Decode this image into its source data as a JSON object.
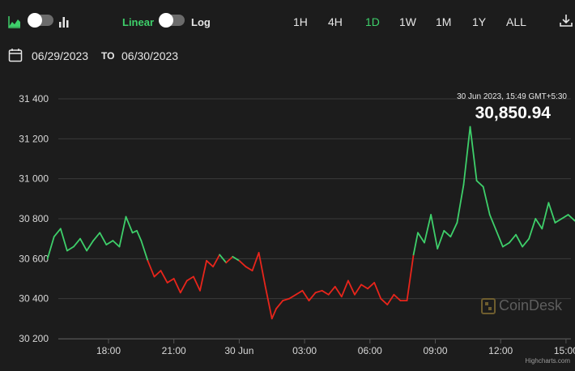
{
  "toolbar": {
    "scale_linear_label": "Linear",
    "scale_log_label": "Log",
    "ranges": [
      "1H",
      "4H",
      "1D",
      "1W",
      "1M",
      "1Y",
      "ALL"
    ],
    "active_range": "1D",
    "accent": "#3ecf6a"
  },
  "date_range": {
    "from": "06/29/2023",
    "to_label": "TO",
    "to": "06/30/2023"
  },
  "tooltip": {
    "date": "30 Jun 2023, 15:49 GMT+5:30",
    "price": "30,850.94"
  },
  "watermark": "CoinDesk",
  "credits": "Highcharts.com",
  "colors": {
    "up": "#3ecf6a",
    "down": "#e8251b",
    "background": "#1c1c1c"
  },
  "chart_data": {
    "type": "line",
    "yticks": [
      "31 400",
      "31 200",
      "31 000",
      "30 800",
      "30 600",
      "30 400",
      "30 200"
    ],
    "ytick_values": [
      31400,
      31200,
      31000,
      30800,
      30600,
      30400,
      30200
    ],
    "xticks": [
      "18:00",
      "21:00",
      "30 Jun",
      "03:00",
      "06:00",
      "09:00",
      "12:00",
      "15:00"
    ],
    "xtick_hours": [
      18,
      21,
      24,
      27,
      30,
      33,
      36,
      39
    ],
    "ylim": [
      30200,
      31400
    ],
    "series": [
      {
        "hours": [
          15.2,
          15.5,
          15.8,
          16.1,
          16.4,
          16.7,
          17.0,
          17.3,
          17.6,
          17.9,
          18.2,
          18.5,
          18.8,
          19.1,
          19.3,
          19.5,
          19.8,
          20.1,
          20.4,
          20.7,
          21.0,
          21.3,
          21.6,
          21.9,
          22.2,
          22.5,
          22.8,
          23.1,
          23.4,
          23.7,
          24.0,
          24.3,
          24.6,
          24.9,
          25.2,
          25.5,
          25.7,
          26.0,
          26.3,
          26.6,
          26.9,
          27.2,
          27.5,
          27.8,
          28.1,
          28.4,
          28.7,
          29.0,
          29.3,
          29.6,
          29.9,
          30.2,
          30.5,
          30.8,
          31.1,
          31.4,
          31.7,
          32.0,
          32.2,
          32.5,
          32.8,
          33.1,
          33.4,
          33.7,
          34.0,
          34.3,
          34.6,
          34.9,
          35.2,
          35.5,
          35.8,
          36.1,
          36.4,
          36.7,
          37.0,
          37.3,
          37.6,
          37.9,
          38.2,
          38.5,
          38.8,
          39.1,
          39.4,
          39.8
        ],
        "values": [
          30600,
          30710,
          30750,
          30640,
          30660,
          30700,
          30640,
          30690,
          30730,
          30670,
          30690,
          30660,
          30810,
          30730,
          30740,
          30690,
          30590,
          30510,
          30540,
          30480,
          30500,
          30430,
          30490,
          30510,
          30440,
          30590,
          30560,
          30620,
          30580,
          30610,
          30590,
          30560,
          30540,
          30630,
          30460,
          30300,
          30350,
          30390,
          30400,
          30420,
          30440,
          30390,
          30430,
          30440,
          30420,
          30460,
          30410,
          30490,
          30420,
          30470,
          30450,
          30480,
          30400,
          30370,
          30420,
          30390,
          30390,
          30620,
          30730,
          30680,
          30820,
          30650,
          30740,
          30710,
          30780,
          30970,
          31260,
          30990,
          30960,
          30820,
          30740,
          30660,
          30680,
          30720,
          30660,
          30700,
          30800,
          30750,
          30880,
          30780,
          30800,
          30820,
          30790,
          30850
        ]
      }
    ]
  }
}
